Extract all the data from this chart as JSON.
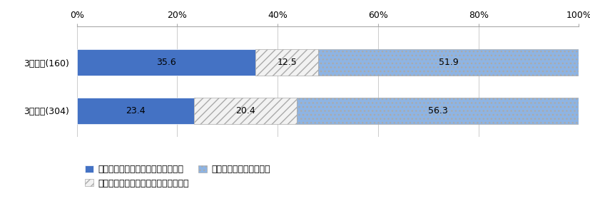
{
  "categories": [
    "3年未満(160)",
    "3年以上(304)"
  ],
  "series": [
    {
      "label": "健康上の問題と事件が関連している",
      "values": [
        35.6,
        23.4
      ],
      "color": "#4472C4",
      "hatch": null,
      "edgecolor": "#FFFFFF"
    },
    {
      "label": "健康上の問題と事件が関連していない",
      "values": [
        12.5,
        20.4
      ],
      "color": "#F2F2F2",
      "hatch": "///",
      "edgecolor": "#AAAAAA"
    },
    {
      "label": "健康上の問題はなかった",
      "values": [
        51.9,
        56.3
      ],
      "color": "#8EB4E3",
      "hatch": "...",
      "edgecolor": "#AAAAAA"
    }
  ],
  "xlim": [
    0,
    100
  ],
  "xticks": [
    0,
    20,
    40,
    60,
    80,
    100
  ],
  "xticklabels": [
    "0%",
    "20%",
    "40%",
    "60%",
    "80%",
    "100%"
  ],
  "bar_height": 0.55,
  "figsize": [
    8.28,
    3.1
  ],
  "dpi": 100,
  "background_color": "#FFFFFF",
  "tick_fontsize": 9,
  "legend_fontsize": 9,
  "value_fontsize": 9
}
